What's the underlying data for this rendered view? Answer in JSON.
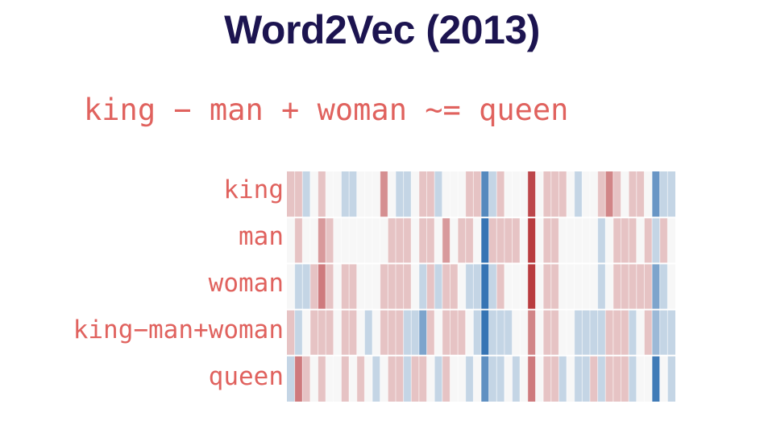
{
  "title": "Word2Vec (2013)",
  "equation": "king − man + woman ~= queen",
  "chart_data": {
    "type": "heatmap",
    "rows": [
      "king",
      "man",
      "woman",
      "king−man+woman",
      "queen"
    ],
    "columns": 50,
    "value_range": [
      -1,
      1
    ],
    "colormap": {
      "negative": "#2c6db0",
      "neutral": "#f7f7f7",
      "positive": "#b2272b"
    },
    "values": [
      [
        0.25,
        0.25,
        -0.25,
        0,
        0.25,
        0,
        0,
        -0.25,
        -0.25,
        0,
        0,
        0,
        0.5,
        0,
        -0.25,
        -0.25,
        0,
        0.25,
        0.25,
        -0.25,
        0,
        0,
        0,
        0.25,
        0.25,
        -0.8,
        -0.25,
        0.25,
        0,
        0,
        0,
        0.85,
        0,
        0.25,
        0.25,
        0.25,
        0,
        -0.25,
        0,
        0,
        0.25,
        0.55,
        0.25,
        0,
        0.25,
        0.25,
        0,
        -0.7,
        -0.25,
        -0.25
      ],
      [
        0,
        0.25,
        0,
        0,
        0.45,
        0.25,
        0,
        0,
        0,
        0,
        0,
        0,
        0,
        0.25,
        0.25,
        0.25,
        0,
        0.25,
        0.25,
        0,
        0.45,
        0,
        0.25,
        0.25,
        0,
        -0.95,
        0.25,
        0.25,
        0.25,
        0.25,
        0,
        0.9,
        0,
        0.25,
        0.25,
        0,
        0,
        0,
        0,
        0,
        -0.25,
        0,
        0.25,
        0.25,
        0.25,
        0,
        0.25,
        -0.25,
        0.25,
        0
      ],
      [
        0,
        -0.25,
        -0.25,
        0.25,
        0.6,
        0.25,
        0,
        0.25,
        0.25,
        0,
        0,
        0,
        0.25,
        0.25,
        0.25,
        0.25,
        0,
        -0.25,
        0.25,
        -0.25,
        0.25,
        0.25,
        0,
        -0.25,
        -0.25,
        -0.95,
        -0.25,
        0.25,
        0,
        0,
        0,
        0.9,
        0,
        0.25,
        0.25,
        0,
        0,
        0,
        0,
        0,
        -0.25,
        0,
        0.25,
        0.25,
        0.25,
        0.25,
        0.25,
        -0.6,
        -0.25,
        0
      ],
      [
        0.25,
        -0.25,
        0,
        0.25,
        0.25,
        0.25,
        0,
        0.25,
        0.25,
        0,
        -0.25,
        0,
        0.25,
        0.25,
        0.25,
        -0.25,
        -0.25,
        -0.6,
        0.25,
        0,
        0.25,
        0.25,
        0.25,
        0,
        -0.25,
        -0.95,
        -0.25,
        -0.25,
        -0.25,
        0,
        0,
        0.55,
        0,
        0.25,
        0.25,
        0,
        0,
        -0.25,
        -0.25,
        -0.25,
        -0.25,
        0.25,
        0.25,
        0.25,
        -0.25,
        0,
        0.25,
        -0.45,
        -0.25,
        -0.25
      ],
      [
        -0.25,
        0.6,
        0.25,
        0,
        0.25,
        0,
        0,
        0.25,
        0,
        0.25,
        0,
        -0.25,
        0,
        0.25,
        0.25,
        -0.25,
        0.25,
        0.25,
        0,
        -0.25,
        0.25,
        0,
        0,
        -0.25,
        0,
        -0.75,
        -0.25,
        -0.25,
        0,
        -0.25,
        0,
        0.6,
        0,
        0.25,
        0.25,
        -0.25,
        0,
        -0.25,
        -0.25,
        0.25,
        -0.25,
        0.25,
        0.25,
        0.25,
        -0.25,
        0,
        0,
        -0.9,
        0,
        -0.25
      ]
    ]
  }
}
